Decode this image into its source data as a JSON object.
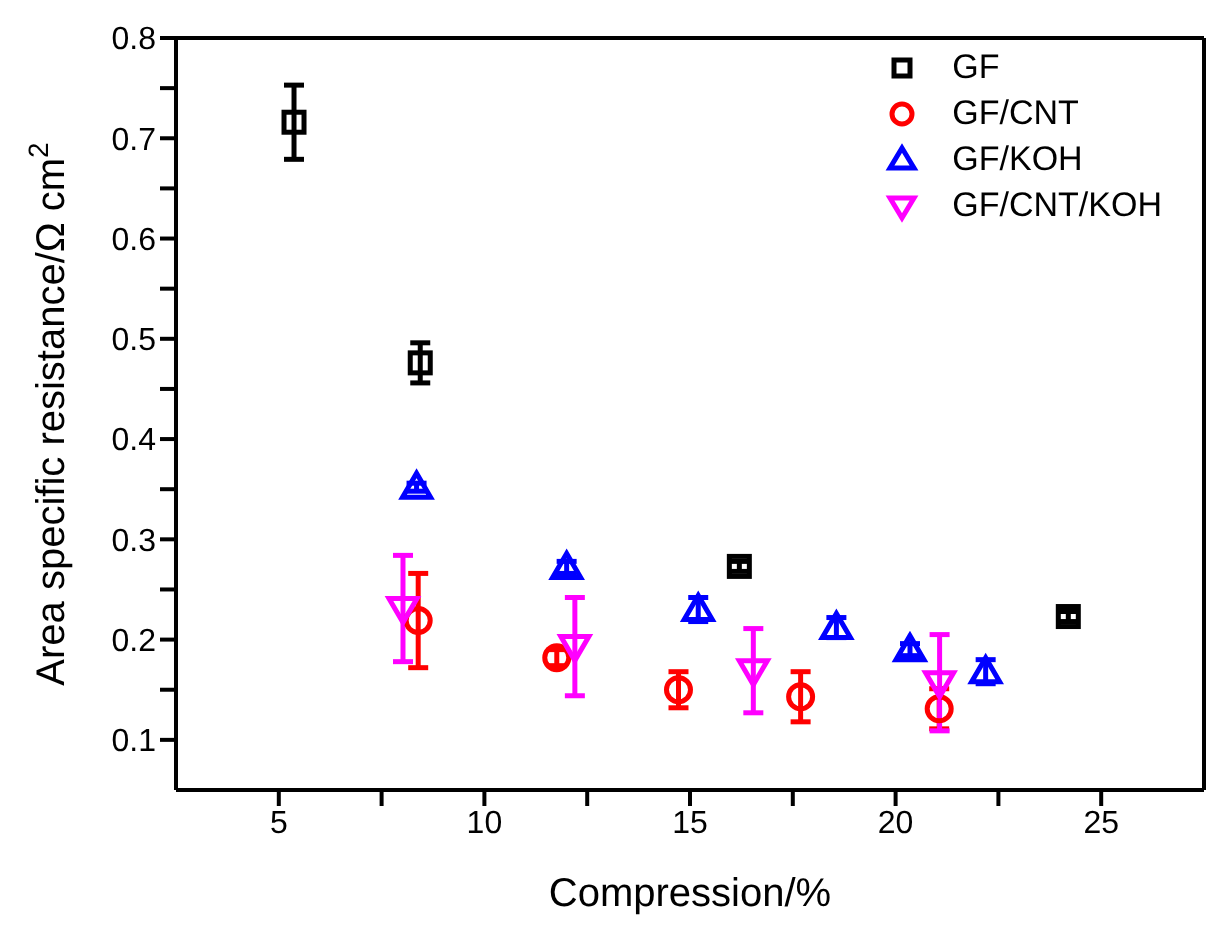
{
  "chart_data": {
    "type": "scatter",
    "xlabel": "Compression/%",
    "ylabel": "Area specific resistance/Ω cm$^{2}$",
    "xlim": [
      2.5,
      27.5
    ],
    "xticks": [
      5,
      {
        "value": 7.5,
        "label": null
      },
      10,
      {
        "value": 12.5,
        "label": null
      },
      15,
      {
        "value": 17.5,
        "label": null
      },
      20,
      {
        "value": 22.5,
        "label": null
      },
      25
    ],
    "ylim": [
      0.05,
      0.8
    ],
    "yticks": [
      0.1,
      {
        "value": 0.15,
        "label": null
      },
      0.2,
      {
        "value": 0.25,
        "label": null
      },
      0.3,
      {
        "value": 0.35,
        "label": null
      },
      0.4,
      {
        "value": 0.45,
        "label": null
      },
      0.5,
      {
        "value": 0.55,
        "label": null
      },
      0.6,
      {
        "value": 0.65,
        "label": null
      },
      0.7,
      {
        "value": 0.75,
        "label": null
      },
      0.8
    ],
    "legend": "top right",
    "series": [
      {
        "name": "GF",
        "color": "#000000",
        "marker": "square",
        "x": [
          5.37,
          8.44,
          16.2,
          24.2
        ],
        "values": [
          0.716,
          0.476,
          0.273,
          0.223
        ],
        "errors": [
          0.037,
          0.02,
          0.005,
          0.005
        ]
      },
      {
        "name": "GF/CNT",
        "color": "#ff0000",
        "marker": "circle",
        "x": [
          8.39,
          11.76,
          14.72,
          17.69,
          21.06
        ],
        "values": [
          0.219,
          0.182,
          0.15,
          0.143,
          0.131
        ],
        "errors": [
          0.047,
          0.008,
          0.018,
          0.025,
          0.02
        ]
      },
      {
        "name": "GF/KOH",
        "color": "#0000ff",
        "marker": "triangle",
        "x": [
          8.35,
          12.0,
          15.2,
          18.56,
          20.35,
          22.19
        ],
        "values": [
          0.352,
          0.272,
          0.23,
          0.212,
          0.19,
          0.168
        ],
        "errors": [
          0.004,
          0.006,
          0.012,
          0.01,
          0.006,
          0.012
        ]
      },
      {
        "name": "GF/CNT/KOH",
        "color": "#ff00ff",
        "marker": "triangle-down",
        "x": [
          8.02,
          12.2,
          16.54,
          21.07
        ],
        "values": [
          0.231,
          0.193,
          0.169,
          0.157
        ],
        "errors": [
          0.053,
          0.049,
          0.042,
          0.048
        ]
      }
    ]
  }
}
